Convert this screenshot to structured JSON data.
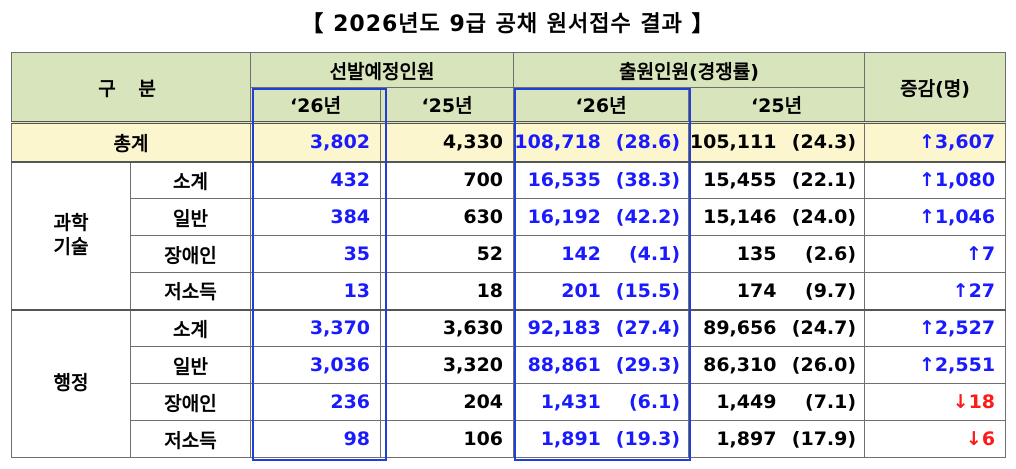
{
  "title": "【 2026년도 9급 공채 원서접수 결과 】",
  "headers": {
    "category": "구  분",
    "quota": "선발예정인원",
    "applicants": "출원인원(경쟁률)",
    "change": "증감(명)",
    "y26": "‘26년",
    "y25": "‘25년"
  },
  "total": {
    "label": "총계",
    "q26": "3,802",
    "q25": "4,330",
    "a26": "108,718",
    "r26": "(28.6)",
    "a25": "105,111",
    "r25": "(24.3)",
    "chg": "↑3,607",
    "dir": "up"
  },
  "groups": [
    {
      "name": "과학\n기술",
      "rows": [
        {
          "label": "소계",
          "q26": "432",
          "q25": "700",
          "a26": "16,535",
          "r26": "(38.3)",
          "a25": "15,455",
          "r25": "(22.1)",
          "chg": "↑1,080",
          "dir": "up"
        },
        {
          "label": "일반",
          "q26": "384",
          "q25": "630",
          "a26": "16,192",
          "r26": "(42.2)",
          "a25": "15,146",
          "r25": "(24.0)",
          "chg": "↑1,046",
          "dir": "up"
        },
        {
          "label": "장애인",
          "q26": "35",
          "q25": "52",
          "a26": "142",
          "r26": "(4.1)",
          "a25": "135",
          "r25": "(2.6)",
          "chg": "↑7",
          "dir": "up"
        },
        {
          "label": "저소득",
          "q26": "13",
          "q25": "18",
          "a26": "201",
          "r26": "(15.5)",
          "a25": "174",
          "r25": "(9.7)",
          "chg": "↑27",
          "dir": "up"
        }
      ]
    },
    {
      "name": "행정",
      "rows": [
        {
          "label": "소계",
          "q26": "3,370",
          "q25": "3,630",
          "a26": "92,183",
          "r26": "(27.4)",
          "a25": "89,656",
          "r25": "(24.7)",
          "chg": "↑2,527",
          "dir": "up"
        },
        {
          "label": "일반",
          "q26": "3,036",
          "q25": "3,320",
          "a26": "88,861",
          "r26": "(29.3)",
          "a25": "86,310",
          "r25": "(26.0)",
          "chg": "↑2,551",
          "dir": "up"
        },
        {
          "label": "장애인",
          "q26": "236",
          "q25": "204",
          "a26": "1,431",
          "r26": "(6.1)",
          "a25": "1,449",
          "r25": "(7.1)",
          "chg": "↓18",
          "dir": "down"
        },
        {
          "label": "저소득",
          "q26": "98",
          "q25": "106",
          "a26": "1,891",
          "r26": "(19.3)",
          "a25": "1,897",
          "r25": "(17.9)",
          "chg": "↓6",
          "dir": "down"
        }
      ]
    }
  ],
  "colors": {
    "up": "#1a1aff",
    "down": "#ff1a1a",
    "header_bg": "#d8e4bc",
    "total_bg": "#fcf6cf",
    "highlight_border": "#1f3fd6"
  }
}
